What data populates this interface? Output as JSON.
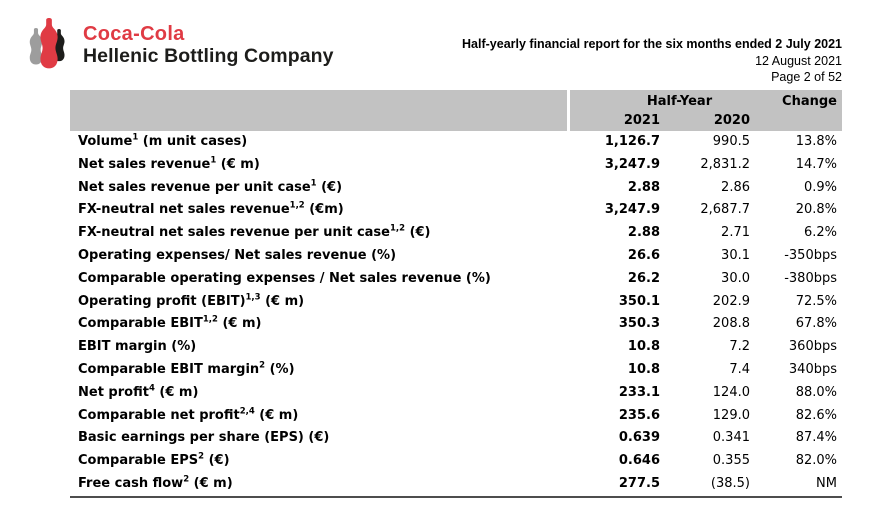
{
  "colors": {
    "brand_red": "#E03B44",
    "bottle_gray": "#9D9D9D",
    "bottle_black": "#1D1D1B",
    "table_header_bg": "#C2C2C2",
    "text_black": "#000000"
  },
  "logo": {
    "line1": "Coca-Cola",
    "line2": "Hellenic Bottling Company"
  },
  "doc_header": {
    "title": "Half-yearly financial report for the six months ended 2 July 2021",
    "date": "12 August 2021",
    "page": "Page 2 of 52"
  },
  "table": {
    "header": {
      "group": "Half-Year",
      "col_2021": "2021",
      "col_2020": "2020",
      "change": "Change"
    },
    "rows": [
      {
        "label": [
          {
            "t": "Volume"
          },
          {
            "s": "1"
          },
          {
            "t": " (m unit cases)"
          }
        ],
        "v2021": "1,126.7",
        "v2020": "990.5",
        "change": "13.8%"
      },
      {
        "label": [
          {
            "t": "Net sales revenue"
          },
          {
            "s": "1"
          },
          {
            "t": " (€ m)"
          }
        ],
        "v2021": "3,247.9",
        "v2020": "2,831.2",
        "change": "14.7%"
      },
      {
        "label": [
          {
            "t": "Net sales revenue per unit case"
          },
          {
            "s": "1"
          },
          {
            "t": " (€)"
          }
        ],
        "v2021": "2.88",
        "v2020": "2.86",
        "change": "0.9%"
      },
      {
        "label": [
          {
            "t": "FX-neutral net sales revenue"
          },
          {
            "s": "1,2"
          },
          {
            "t": " (€m)"
          }
        ],
        "v2021": "3,247.9",
        "v2020": "2,687.7",
        "change": "20.8%"
      },
      {
        "label": [
          {
            "t": "FX-neutral net sales revenue per unit case"
          },
          {
            "s": "1,2"
          },
          {
            "t": " (€)"
          }
        ],
        "v2021": "2.88",
        "v2020": "2.71",
        "change": "6.2%"
      },
      {
        "label": [
          {
            "t": "Operating expenses/ Net sales revenue (%)"
          }
        ],
        "v2021": "26.6",
        "v2020": "30.1",
        "change": "-350bps"
      },
      {
        "label": [
          {
            "t": "Comparable operating expenses / Net sales revenue (%)"
          }
        ],
        "v2021": "26.2",
        "v2020": "30.0",
        "change": "-380bps"
      },
      {
        "label": [
          {
            "t": "Operating profit (EBIT)"
          },
          {
            "s": "1,3"
          },
          {
            "t": " (€ m)"
          }
        ],
        "v2021": "350.1",
        "v2020": "202.9",
        "change": "72.5%"
      },
      {
        "label": [
          {
            "t": "Comparable EBIT"
          },
          {
            "s": "1,2"
          },
          {
            "t": " (€ m)"
          }
        ],
        "v2021": "350.3",
        "v2020": "208.8",
        "change": "67.8%"
      },
      {
        "label": [
          {
            "t": "EBIT margin (%)"
          }
        ],
        "v2021": "10.8",
        "v2020": "7.2",
        "change": "360bps"
      },
      {
        "label": [
          {
            "t": "Comparable EBIT margin"
          },
          {
            "s": "2"
          },
          {
            "t": " (%)"
          }
        ],
        "v2021": "10.8",
        "v2020": "7.4",
        "change": "340bps"
      },
      {
        "label": [
          {
            "t": "Net profit"
          },
          {
            "s": "4"
          },
          {
            "t": " (€ m)"
          }
        ],
        "v2021": "233.1",
        "v2020": "124.0",
        "change": "88.0%"
      },
      {
        "label": [
          {
            "t": "Comparable net profit"
          },
          {
            "s": "2,4"
          },
          {
            "t": " (€ m)"
          }
        ],
        "v2021": "235.6",
        "v2020": "129.0",
        "change": "82.6%"
      },
      {
        "label": [
          {
            "t": "Basic earnings per share (EPS) (€)"
          }
        ],
        "v2021": "0.639",
        "v2020": "0.341",
        "change": "87.4%"
      },
      {
        "label": [
          {
            "t": "Comparable EPS"
          },
          {
            "s": "2"
          },
          {
            "t": " (€)"
          }
        ],
        "v2021": "0.646",
        "v2020": "0.355",
        "change": "82.0%"
      },
      {
        "label": [
          {
            "t": "Free cash flow"
          },
          {
            "s": "2"
          },
          {
            "t": " (€ m)"
          }
        ],
        "v2021": "277.5",
        "v2020": "(38.5)",
        "change": "NM"
      }
    ]
  }
}
